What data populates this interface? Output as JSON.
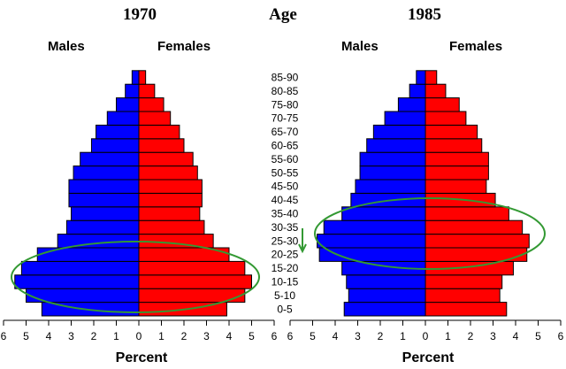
{
  "chart_data": [
    {
      "type": "bar",
      "title": "1970",
      "xlabel": "Percent",
      "series": [
        {
          "name": "Males",
          "color": "#0000ff",
          "values": [
            4.3,
            5.0,
            5.5,
            5.2,
            4.5,
            3.6,
            3.2,
            3.0,
            3.1,
            3.1,
            2.9,
            2.6,
            2.1,
            1.9,
            1.4,
            1.0,
            0.6,
            0.3
          ]
        },
        {
          "name": "Females",
          "color": "#ff0000",
          "values": [
            3.9,
            4.7,
            5.0,
            4.7,
            4.0,
            3.3,
            2.9,
            2.7,
            2.8,
            2.8,
            2.6,
            2.4,
            2.0,
            1.8,
            1.4,
            1.1,
            0.7,
            0.3
          ]
        }
      ],
      "xlim": [
        -6,
        6
      ],
      "ticks": [
        6,
        5,
        4,
        3,
        2,
        1,
        0,
        1,
        2,
        3,
        4,
        5,
        6
      ]
    },
    {
      "type": "bar",
      "title": "1985",
      "xlabel": "Percent",
      "series": [
        {
          "name": "Males",
          "color": "#0000ff",
          "values": [
            3.6,
            3.4,
            3.5,
            3.7,
            4.7,
            4.8,
            4.5,
            3.7,
            3.3,
            3.1,
            2.9,
            2.9,
            2.6,
            2.3,
            1.8,
            1.2,
            0.7,
            0.4
          ]
        },
        {
          "name": "Females",
          "color": "#ff0000",
          "values": [
            3.6,
            3.3,
            3.4,
            3.9,
            4.5,
            4.6,
            4.3,
            3.7,
            3.1,
            2.7,
            2.8,
            2.8,
            2.5,
            2.3,
            1.8,
            1.5,
            0.9,
            0.5
          ]
        }
      ],
      "xlim": [
        -6,
        6
      ],
      "ticks": [
        6,
        5,
        4,
        3,
        2,
        1,
        0,
        1,
        2,
        3,
        4,
        5,
        6
      ]
    }
  ],
  "age_header": "Age",
  "age_groups": [
    "0-5",
    "5-10",
    "10-15",
    "15-20",
    "20-25",
    "25-30",
    "30-35",
    "35-40",
    "40-45",
    "45-50",
    "50-55",
    "55-60",
    "60-65",
    "65-70",
    "70-75",
    "75-80",
    "80-85",
    "85-90"
  ],
  "labels": {
    "males": "Males",
    "females": "Females"
  },
  "colors": {
    "male": "#0000ff",
    "female": "#ff0000",
    "highlight": "#339933",
    "outline": "#000000"
  }
}
